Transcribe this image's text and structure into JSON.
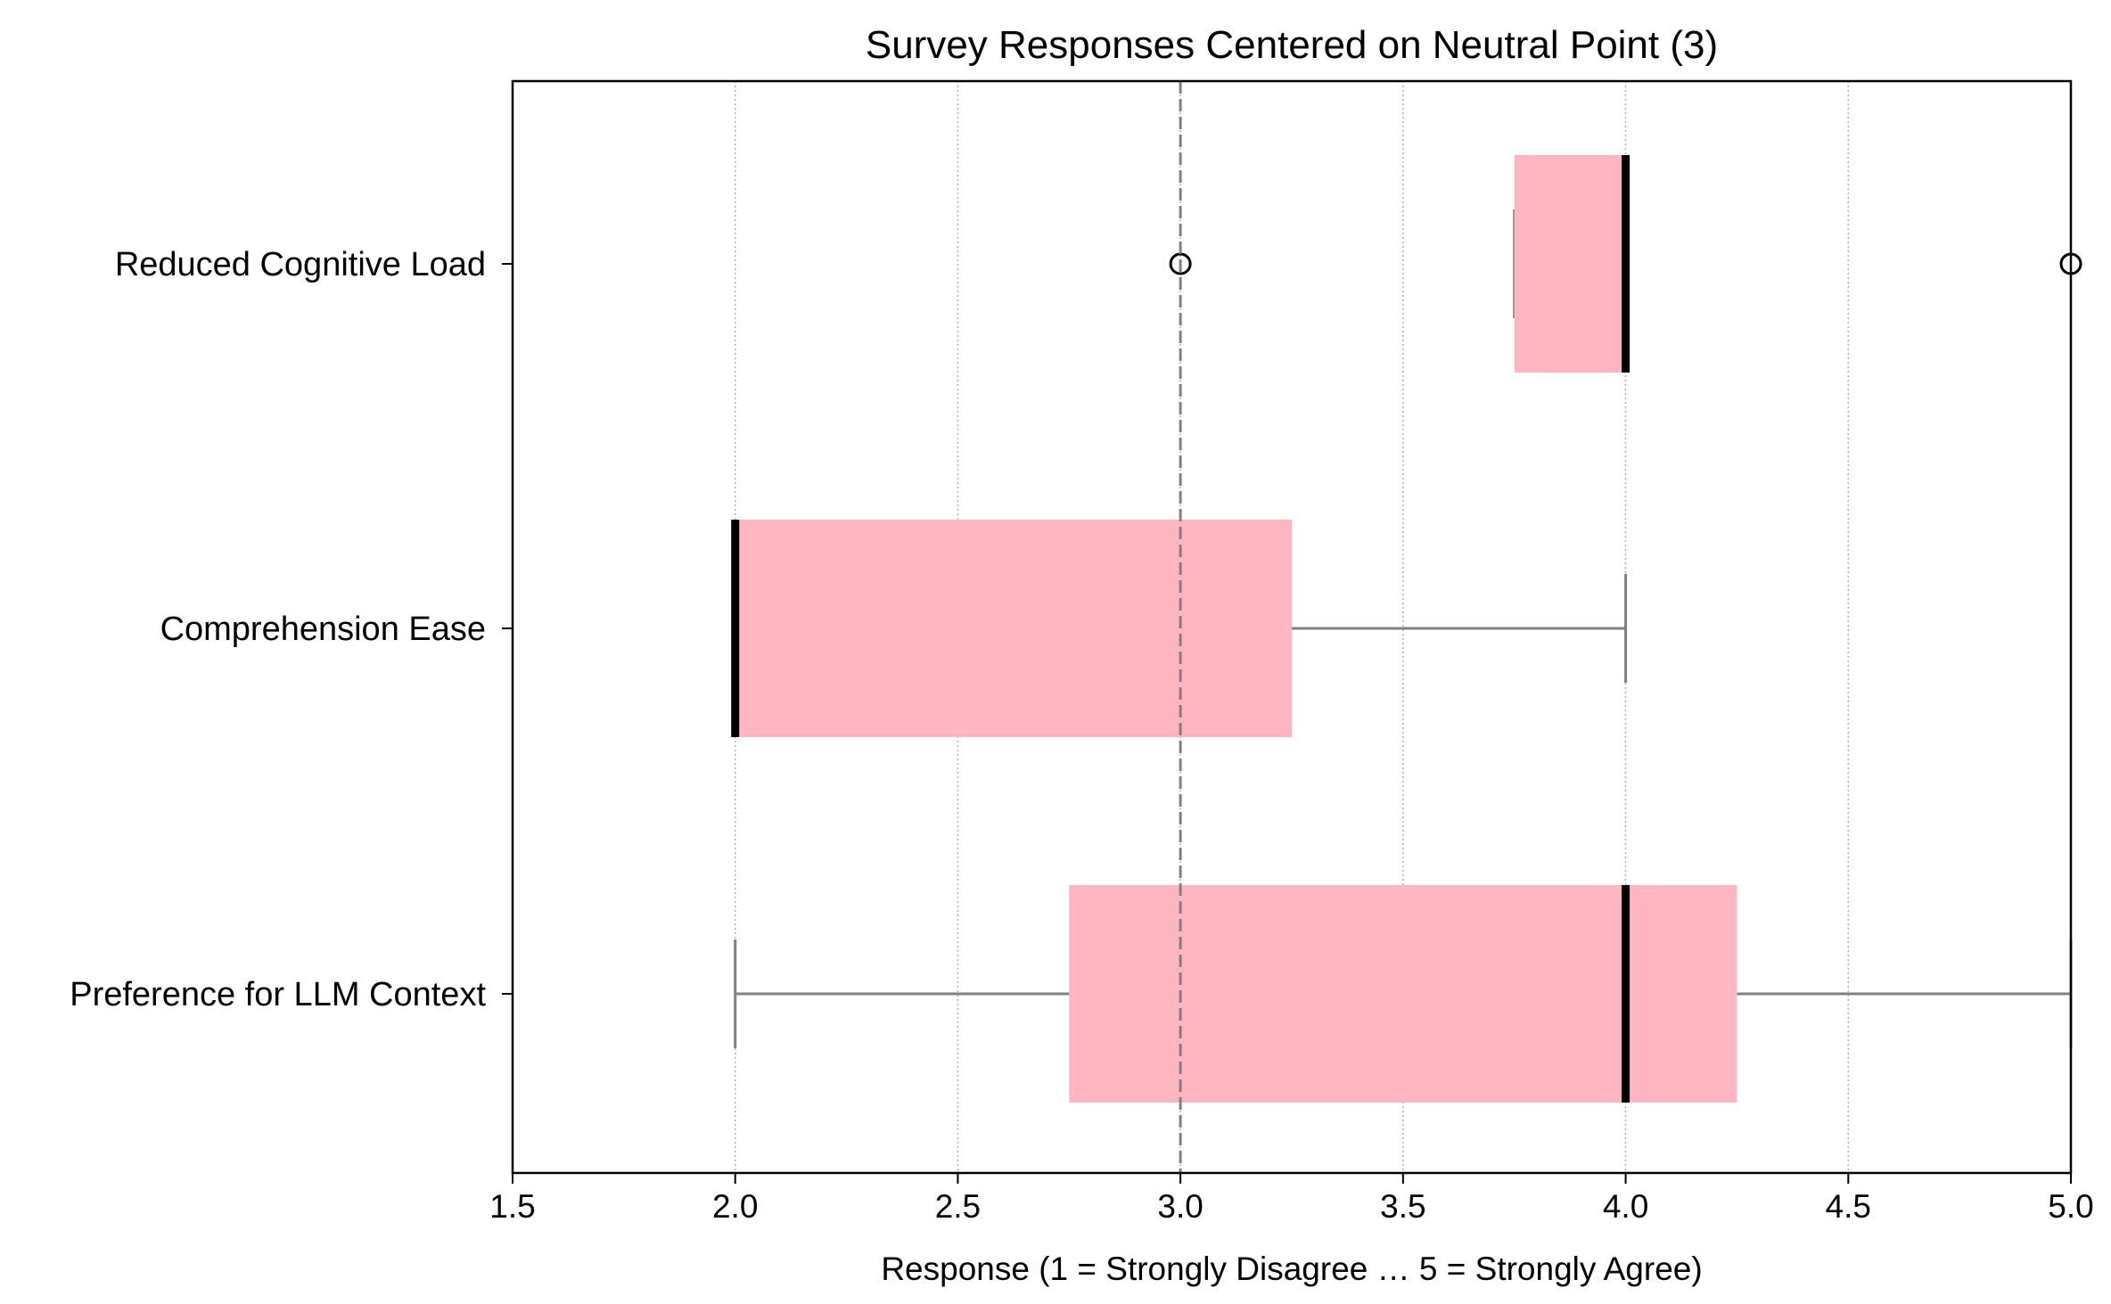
{
  "chart_data": {
    "type": "boxplot",
    "orientation": "horizontal",
    "title": "Survey Responses Centered on Neutral Point (3)",
    "xlabel": "Response (1 = Strongly Disagree … 5 = Strongly Agree)",
    "ylabel": "",
    "xlim": [
      1.5,
      5.0
    ],
    "xticks": [
      "1.5",
      "2.0",
      "2.5",
      "3.0",
      "3.5",
      "4.0",
      "4.5",
      "5.0"
    ],
    "reference_line": {
      "x": 3.0,
      "style": "dashed",
      "color": "#808080"
    },
    "grid": {
      "axis": "x",
      "style": "dotted",
      "color": "#b0b0b0"
    },
    "box_color": "#ffb6c1",
    "median_color": "#000000",
    "whisker_color": "#808080",
    "categories": [
      "Reduced Cognitive Load",
      "Comprehension Ease",
      "Preference for LLM Context"
    ],
    "boxes": [
      {
        "label": "Reduced Cognitive Load",
        "whisker_low": 3.75,
        "q1": 3.75,
        "median": 4.0,
        "q3": 4.0,
        "whisker_high": 4.0,
        "outliers": [
          3.0,
          5.0
        ]
      },
      {
        "label": "Comprehension Ease",
        "whisker_low": 2.0,
        "q1": 2.0,
        "median": 2.0,
        "q3": 3.25,
        "whisker_high": 4.0,
        "outliers": []
      },
      {
        "label": "Preference for LLM Context",
        "whisker_low": 2.0,
        "q1": 2.75,
        "median": 4.0,
        "q3": 4.25,
        "whisker_high": 5.0,
        "outliers": []
      }
    ]
  }
}
